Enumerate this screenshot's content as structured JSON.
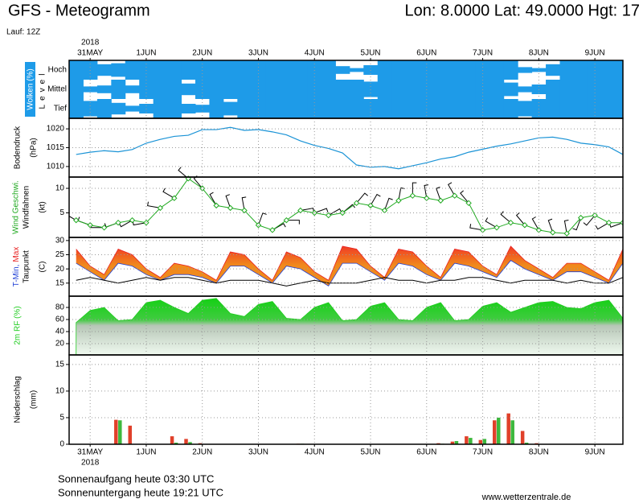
{
  "header": {
    "title": "GFS - Meteogramm",
    "location": "Lon: 8.0000 Lat: 49.0000 Hgt: 17",
    "run": "Lauf: 12Z"
  },
  "footer": {
    "sunrise": "Sonnenaufgang heute 03:30 UTC",
    "sunset": "Sonnenuntergang heute 19:21 UTC",
    "source": "www.wetterzentrale.de"
  },
  "chart_data": [
    {
      "type": "heatmap",
      "ylabel": "Wolken (%)",
      "level_label": "Level",
      "xlabel": "2018",
      "x": [
        -6,
        0,
        6,
        12,
        18,
        24,
        30,
        36,
        42,
        48,
        54,
        60,
        66,
        72,
        78,
        84,
        90,
        96,
        102,
        108,
        114,
        120,
        126,
        132,
        138,
        144,
        150,
        156,
        162,
        168,
        174,
        180,
        186,
        192,
        198,
        204,
        210,
        216,
        222,
        228
      ],
      "xlim": [
        -9,
        228
      ],
      "xticks": [
        {
          "value": 0,
          "label": "31MAY"
        },
        {
          "value": 24,
          "label": "1JUN"
        },
        {
          "value": 48,
          "label": "2JUN"
        },
        {
          "value": 72,
          "label": "3JUN"
        },
        {
          "value": 96,
          "label": "4JUN"
        },
        {
          "value": 120,
          "label": "5JUN"
        },
        {
          "value": 144,
          "label": "6JUN"
        },
        {
          "value": 168,
          "label": "7JUN"
        },
        {
          "value": 192,
          "label": "8JUN"
        },
        {
          "value": 216,
          "label": "9JUN"
        }
      ],
      "color": "#1e9be8",
      "grid": true,
      "series": [
        {
          "name": "Hoch",
          "values": [
            100,
            100,
            60,
            70,
            100,
            100,
            100,
            100,
            100,
            100,
            100,
            100,
            100,
            100,
            100,
            100,
            100,
            100,
            100,
            40,
            20,
            50,
            100,
            100,
            100,
            100,
            100,
            100,
            100,
            100,
            100,
            100,
            30,
            20,
            60,
            100,
            100,
            100,
            100,
            100
          ]
        },
        {
          "name": "Mittel",
          "values": [
            100,
            30,
            40,
            100,
            40,
            100,
            100,
            100,
            60,
            100,
            100,
            100,
            100,
            100,
            100,
            100,
            100,
            100,
            100,
            100,
            100,
            80,
            100,
            100,
            100,
            100,
            100,
            100,
            100,
            100,
            100,
            70,
            30,
            50,
            100,
            100,
            100,
            100,
            100,
            100
          ]
        },
        {
          "name": "Tief",
          "values": [
            100,
            80,
            100,
            60,
            30,
            50,
            100,
            100,
            50,
            40,
            100,
            70,
            100,
            100,
            100,
            100,
            100,
            100,
            100,
            100,
            100,
            100,
            100,
            100,
            100,
            100,
            100,
            100,
            100,
            100,
            100,
            100,
            80,
            100,
            100,
            100,
            100,
            100,
            100,
            100
          ]
        }
      ]
    },
    {
      "type": "line",
      "ylabel": "Bodendruck",
      "yunit": "(hPa)",
      "x": [
        -6,
        0,
        6,
        12,
        18,
        24,
        30,
        36,
        42,
        48,
        54,
        60,
        66,
        72,
        78,
        84,
        90,
        96,
        102,
        108,
        114,
        120,
        126,
        132,
        138,
        144,
        150,
        156,
        162,
        168,
        174,
        180,
        186,
        192,
        198,
        204,
        210,
        216,
        222,
        228
      ],
      "xlim": [
        -9,
        228
      ],
      "ylim": [
        1007.2,
        1022.8
      ],
      "yticks": [
        1010,
        1015,
        1020
      ],
      "grid": true,
      "series": [
        {
          "color": "#1a93d6",
          "values": [
            1013.2,
            1013.8,
            1014.2,
            1013.9,
            1014.5,
            1016.2,
            1017.2,
            1018.0,
            1018.3,
            1019.8,
            1019.8,
            1020.4,
            1019.6,
            1019.8,
            1019.2,
            1018.4,
            1016.8,
            1015.6,
            1014.8,
            1013.6,
            1010.4,
            1009.8,
            1010.0,
            1009.4,
            1010.2,
            1011.0,
            1012.0,
            1012.6,
            1013.8,
            1014.6,
            1015.4,
            1016.0,
            1016.8,
            1017.6,
            1017.8,
            1017.2,
            1016.2,
            1015.8,
            1015.2,
            1013.2
          ]
        }
      ]
    },
    {
      "type": "wind",
      "yunit": "(kt)",
      "x": [
        -6,
        0,
        6,
        12,
        18,
        24,
        30,
        36,
        42,
        48,
        54,
        60,
        66,
        72,
        78,
        84,
        90,
        96,
        102,
        108,
        114,
        120,
        126,
        132,
        138,
        144,
        150,
        156,
        162,
        168,
        174,
        180,
        186,
        192,
        198,
        204,
        210,
        216,
        222,
        228
      ],
      "xlim": [
        -9,
        228
      ],
      "ylim": [
        0,
        12.3
      ],
      "yticks": [
        5,
        10
      ],
      "grid": true,
      "series": [
        {
          "name": "Wind Geschwi.",
          "color": "#22aa22",
          "values": [
            3.5,
            2.5,
            2.0,
            3.0,
            3.5,
            3.0,
            6.0,
            8.0,
            12.0,
            10.0,
            6.5,
            6.0,
            5.5,
            2.5,
            1.5,
            3.5,
            5.5,
            5.0,
            4.5,
            5.0,
            7.0,
            6.5,
            5.5,
            7.5,
            8.5,
            8.0,
            7.5,
            8.5,
            7.0,
            1.5,
            2.0,
            3.0,
            2.5,
            1.5,
            1.0,
            0.8,
            4.0,
            4.5,
            3.0,
            3.0
          ]
        },
        {
          "name": "Windfahnen",
          "color": "#000000",
          "values": [
            300,
            290,
            270,
            250,
            240,
            260,
            280,
            300,
            310,
            320,
            330,
            340,
            350,
            20,
            60,
            90,
            80,
            70,
            60,
            50,
            40,
            30,
            20,
            10,
            0,
            350,
            340,
            330,
            320,
            280,
            300,
            310,
            320,
            330,
            340,
            350,
            200,
            220,
            240,
            250
          ]
        }
      ]
    },
    {
      "type": "band",
      "yunit": "(C)",
      "x": [
        -6,
        0,
        6,
        12,
        18,
        24,
        30,
        36,
        42,
        48,
        54,
        60,
        66,
        72,
        78,
        84,
        90,
        96,
        102,
        108,
        114,
        120,
        126,
        132,
        138,
        144,
        150,
        156,
        162,
        168,
        174,
        180,
        186,
        192,
        198,
        204,
        210,
        216,
        222,
        228
      ],
      "xlim": [
        -9,
        228
      ],
      "ylim": [
        10.4,
        31.1
      ],
      "yticks": [
        15,
        20,
        25,
        30
      ],
      "grid": true,
      "series": [
        {
          "name": "T-Min,",
          "color": "#1f3fd6",
          "values": [
            22,
            19,
            16,
            22,
            21,
            18,
            16,
            18,
            18,
            17,
            15,
            21,
            21,
            18,
            15,
            21,
            20,
            17,
            14,
            22,
            22,
            19,
            16,
            22,
            21,
            18,
            16,
            22,
            21,
            19,
            17,
            23,
            20,
            18,
            16,
            19,
            19,
            17,
            15,
            22
          ]
        },
        {
          "name": "Max",
          "color": "#e82020",
          "values": [
            27,
            21,
            18,
            27,
            25,
            20,
            17,
            22,
            21,
            19,
            16,
            26,
            25,
            20,
            16,
            26,
            24,
            19,
            16,
            28,
            27,
            21,
            17,
            27,
            26,
            21,
            17,
            27,
            26,
            21,
            18,
            28,
            23,
            20,
            17,
            22,
            22,
            19,
            16,
            27
          ]
        },
        {
          "name": "Taupunkt",
          "color": "#000000",
          "values": [
            16,
            17,
            16,
            15,
            16,
            17,
            16,
            17,
            17,
            16,
            15,
            16,
            16,
            16,
            15,
            14,
            15,
            16,
            15,
            15,
            15,
            16,
            17,
            16,
            16,
            15,
            16,
            16,
            17,
            17,
            16,
            15,
            16,
            16,
            16,
            15,
            16,
            15,
            15,
            17
          ]
        }
      ]
    },
    {
      "type": "area",
      "ylabel": "2m RF (%)",
      "x": [
        -6,
        0,
        6,
        12,
        18,
        24,
        30,
        36,
        42,
        48,
        54,
        60,
        66,
        72,
        78,
        84,
        90,
        96,
        102,
        108,
        114,
        120,
        126,
        132,
        138,
        144,
        150,
        156,
        162,
        168,
        174,
        180,
        186,
        192,
        198,
        204,
        210,
        216,
        222,
        228
      ],
      "xlim": [
        -9,
        228
      ],
      "ylim": [
        1.3,
        98.7
      ],
      "yticks": [
        20,
        40,
        60,
        80
      ],
      "grid": true,
      "color": "#1fcc1f",
      "values": [
        55,
        75,
        80,
        58,
        60,
        88,
        92,
        80,
        70,
        92,
        95,
        70,
        65,
        85,
        90,
        62,
        60,
        80,
        88,
        58,
        60,
        82,
        88,
        60,
        58,
        80,
        88,
        58,
        60,
        82,
        88,
        72,
        80,
        88,
        90,
        80,
        78,
        88,
        92,
        62
      ]
    },
    {
      "type": "bar",
      "ylabel": "Niederschlag",
      "yunit": "(mm)",
      "xlabel": "2018",
      "x": [
        -6,
        0,
        6,
        12,
        18,
        24,
        30,
        36,
        42,
        48,
        54,
        60,
        66,
        72,
        78,
        84,
        90,
        96,
        102,
        108,
        114,
        120,
        126,
        132,
        138,
        144,
        150,
        156,
        162,
        168,
        174,
        180,
        186,
        192,
        198,
        204,
        210,
        216,
        222,
        228
      ],
      "xlim": [
        -9,
        228
      ],
      "ylim": [
        0,
        16.8
      ],
      "yticks": [
        0,
        5,
        10,
        15
      ],
      "grid": true,
      "xticks": [
        {
          "value": 0,
          "label": "31MAY"
        },
        {
          "value": 24,
          "label": "1JUN"
        },
        {
          "value": 48,
          "label": "2JUN"
        },
        {
          "value": 72,
          "label": "3JUN"
        },
        {
          "value": 96,
          "label": "4JUN"
        },
        {
          "value": 120,
          "label": "5JUN"
        },
        {
          "value": 144,
          "label": "6JUN"
        },
        {
          "value": 168,
          "label": "7JUN"
        },
        {
          "value": 192,
          "label": "8JUN"
        },
        {
          "value": 216,
          "label": "9JUN"
        }
      ],
      "series": [
        {
          "color": "#e0402a",
          "values": [
            0,
            0,
            0,
            4.6,
            3.5,
            0,
            0,
            1.5,
            1.0,
            0.2,
            0,
            0,
            0,
            0,
            0,
            0,
            0.1,
            0,
            0,
            0,
            0,
            0,
            0,
            0,
            0,
            0,
            0.2,
            0.5,
            1.5,
            0.8,
            4.5,
            5.8,
            2.5,
            0.2,
            0,
            0,
            0,
            0,
            0,
            0
          ]
        },
        {
          "color": "#3db83d",
          "values": [
            0,
            0,
            0,
            4.5,
            0,
            0,
            0,
            0.3,
            0.4,
            0,
            0,
            0,
            0,
            0,
            0,
            0,
            0.1,
            0,
            0,
            0,
            0,
            0,
            0,
            0,
            0,
            0,
            0.1,
            0.6,
            1.2,
            1.0,
            5.0,
            4.5,
            0.3,
            0,
            0,
            0,
            0,
            0,
            0,
            0
          ]
        }
      ]
    }
  ]
}
